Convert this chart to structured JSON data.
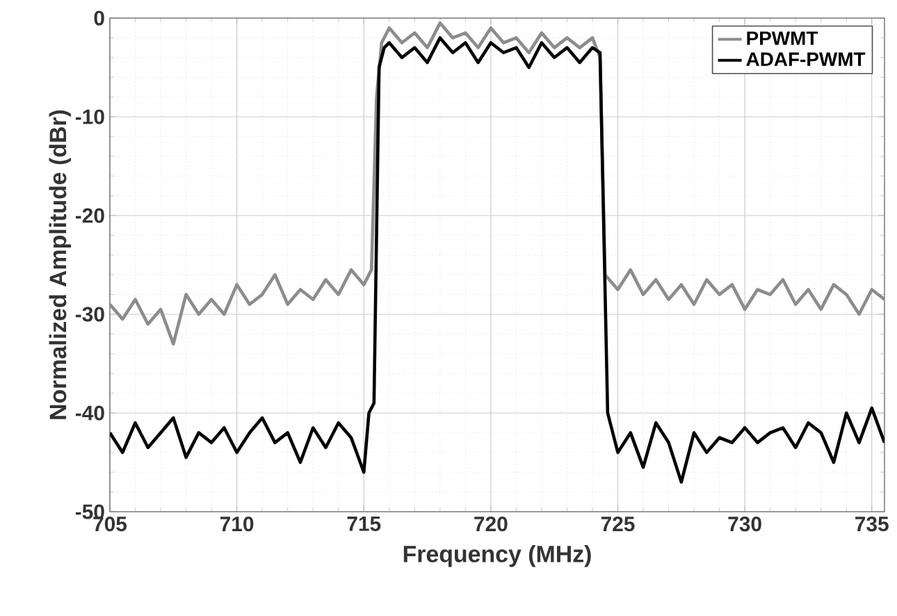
{
  "chart_data": {
    "type": "line",
    "xlabel": "Frequency (MHz)",
    "ylabel": "Normalized Amplitude (dBr)",
    "xlim": [
      705,
      735.5
    ],
    "ylim": [
      -50,
      0
    ],
    "xticks": [
      705,
      710,
      715,
      720,
      725,
      730,
      735
    ],
    "yticks": [
      -50,
      -40,
      -30,
      -20,
      -10,
      0
    ],
    "grid": true,
    "legend": "top right",
    "series": [
      {
        "name": "PPWMT",
        "color": "#8c8c8c",
        "x": [
          705,
          705.5,
          706,
          706.5,
          707,
          707.5,
          708,
          708.5,
          709,
          709.5,
          710,
          710.5,
          711,
          711.5,
          712,
          712.5,
          713,
          713.5,
          714,
          714.5,
          715,
          715.3,
          715.5,
          715.7,
          716,
          716.5,
          717,
          717.5,
          718,
          718.5,
          719,
          719.5,
          720,
          720.5,
          721,
          721.5,
          722,
          722.5,
          723,
          723.5,
          724,
          724.3,
          724.5,
          725,
          725.5,
          726,
          726.5,
          727,
          727.5,
          728,
          728.5,
          729,
          729.5,
          730,
          730.5,
          731,
          731.5,
          732,
          732.5,
          733,
          733.5,
          734,
          734.5,
          735,
          735.5
        ],
        "values": [
          -29,
          -30.5,
          -28.5,
          -31,
          -29.5,
          -33,
          -28,
          -30,
          -28.5,
          -30,
          -27,
          -29,
          -28,
          -26,
          -29,
          -27.5,
          -28.5,
          -26.5,
          -28,
          -25.5,
          -27,
          -25.5,
          -8,
          -2.5,
          -1,
          -2.5,
          -1.5,
          -3,
          -0.5,
          -2,
          -1.5,
          -3,
          -1,
          -2.5,
          -2,
          -3.5,
          -1.5,
          -3,
          -2,
          -3,
          -2,
          -4,
          -26,
          -27.5,
          -25.5,
          -28,
          -26.5,
          -28.5,
          -27,
          -29,
          -26.5,
          -28,
          -27,
          -29.5,
          -27.5,
          -28,
          -26.5,
          -29,
          -27.5,
          -29.5,
          -27,
          -28,
          -30,
          -27.5,
          -28.5
        ]
      },
      {
        "name": "ADAF-PWMT",
        "color": "#000000",
        "x": [
          705,
          705.5,
          706,
          706.5,
          707,
          707.5,
          708,
          708.5,
          709,
          709.5,
          710,
          710.5,
          711,
          711.5,
          712,
          712.5,
          713,
          713.5,
          714,
          714.5,
          715,
          715.2,
          715.4,
          715.6,
          715.8,
          716,
          716.5,
          717,
          717.5,
          718,
          718.5,
          719,
          719.5,
          720,
          720.5,
          721,
          721.5,
          722,
          722.5,
          723,
          723.5,
          724,
          724.3,
          724.6,
          725,
          725.5,
          726,
          726.5,
          727,
          727.5,
          728,
          728.5,
          729,
          729.5,
          730,
          730.5,
          731,
          731.5,
          732,
          732.5,
          733,
          733.5,
          734,
          734.5,
          735,
          735.5
        ],
        "values": [
          -42,
          -44,
          -41,
          -43.5,
          -42,
          -40.5,
          -44.5,
          -42,
          -43,
          -41.5,
          -44,
          -42,
          -40.5,
          -43,
          -42,
          -45,
          -41.5,
          -43.5,
          -41,
          -42.5,
          -46,
          -40,
          -39,
          -5,
          -3,
          -2.5,
          -4,
          -3,
          -4.5,
          -2,
          -3.5,
          -2.5,
          -4.5,
          -2.5,
          -3.5,
          -3,
          -5,
          -2.5,
          -4,
          -3,
          -4.5,
          -3,
          -3.5,
          -40,
          -44,
          -42,
          -45.5,
          -41,
          -43,
          -47,
          -42,
          -44,
          -42.5,
          -43,
          -41.5,
          -43,
          -42,
          -41.5,
          -43.5,
          -41,
          -42,
          -45,
          -40,
          -43,
          -39.5,
          -43
        ]
      }
    ]
  }
}
